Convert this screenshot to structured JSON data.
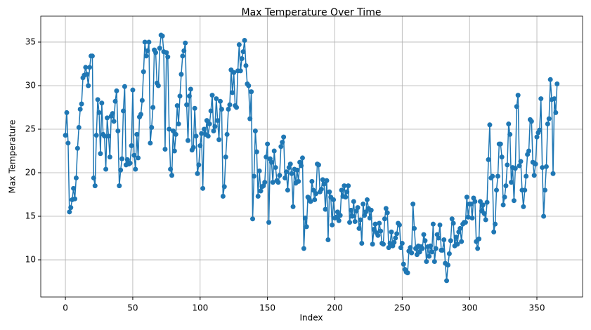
{
  "chart_data": {
    "type": "line",
    "title": "Max Temperature Over Time",
    "x_label": "Index",
    "y_label": "Max Temperature",
    "color": "#1f77b4",
    "grid": true,
    "markers": true,
    "xlim": [
      -18.3,
      383.9
    ],
    "ylim": [
      5.73,
      37.98
    ],
    "xticks": [
      0,
      50,
      100,
      150,
      200,
      250,
      300,
      350
    ],
    "yticks": [
      10,
      15,
      20,
      25,
      30,
      35
    ],
    "x": [
      0,
      1,
      2,
      3,
      4,
      5,
      6,
      7,
      8,
      9,
      10,
      11,
      12,
      13,
      14,
      15,
      16,
      17,
      18,
      19,
      20,
      21,
      22,
      23,
      24,
      25,
      26,
      27,
      28,
      29,
      30,
      31,
      32,
      33,
      34,
      35,
      36,
      37,
      38,
      39,
      40,
      41,
      42,
      43,
      44,
      45,
      46,
      47,
      48,
      49,
      50,
      51,
      52,
      53,
      54,
      55,
      56,
      57,
      58,
      59,
      60,
      61,
      62,
      63,
      64,
      65,
      66,
      67,
      68,
      69,
      70,
      71,
      72,
      73,
      74,
      75,
      76,
      77,
      78,
      79,
      80,
      81,
      82,
      83,
      84,
      85,
      86,
      87,
      88,
      89,
      90,
      91,
      92,
      93,
      94,
      95,
      96,
      97,
      98,
      99,
      100,
      101,
      102,
      103,
      104,
      105,
      106,
      107,
      108,
      109,
      110,
      111,
      112,
      113,
      114,
      115,
      116,
      117,
      118,
      119,
      120,
      121,
      122,
      123,
      124,
      125,
      126,
      127,
      128,
      129,
      130,
      131,
      132,
      133,
      134,
      135,
      136,
      137,
      138,
      139,
      140,
      141,
      142,
      143,
      144,
      145,
      146,
      147,
      148,
      149,
      150,
      151,
      152,
      153,
      154,
      155,
      156,
      157,
      158,
      159,
      160,
      161,
      162,
      163,
      164,
      165,
      166,
      167,
      168,
      169,
      170,
      171,
      172,
      173,
      174,
      175,
      176,
      177,
      178,
      179,
      180,
      181,
      182,
      183,
      184,
      185,
      186,
      187,
      188,
      189,
      190,
      191,
      192,
      193,
      194,
      195,
      196,
      197,
      198,
      199,
      200,
      201,
      202,
      203,
      204,
      205,
      206,
      207,
      208,
      209,
      210,
      211,
      212,
      213,
      214,
      215,
      216,
      217,
      218,
      219,
      220,
      221,
      222,
      223,
      224,
      225,
      226,
      227,
      228,
      229,
      230,
      231,
      232,
      233,
      234,
      235,
      236,
      237,
      238,
      239,
      240,
      241,
      242,
      243,
      244,
      245,
      246,
      247,
      248,
      249,
      250,
      251,
      252,
      253,
      254,
      255,
      256,
      257,
      258,
      259,
      260,
      261,
      262,
      263,
      264,
      265,
      266,
      267,
      268,
      269,
      270,
      271,
      272,
      273,
      274,
      275,
      276,
      277,
      278,
      279,
      280,
      281,
      282,
      283,
      284,
      285,
      286,
      287,
      288,
      289,
      290,
      291,
      292,
      293,
      294,
      295,
      296,
      297,
      298,
      299,
      300,
      301,
      302,
      303,
      304,
      305,
      306,
      307,
      308,
      309,
      310,
      311,
      312,
      313,
      314,
      315,
      316,
      317,
      318,
      319,
      320,
      321,
      322,
      323,
      324,
      325,
      326,
      327,
      328,
      329,
      330,
      331,
      332,
      333,
      334,
      335,
      336,
      337,
      338,
      339,
      340,
      341,
      342,
      343,
      344,
      345,
      346,
      347,
      348,
      349,
      350,
      351,
      352,
      353,
      354,
      355,
      356,
      357,
      358,
      359,
      360,
      361,
      362,
      363,
      364,
      365
    ],
    "values": [
      24.3,
      26.9,
      23.4,
      15.5,
      16.0,
      16.9,
      18.2,
      17.0,
      19.4,
      22.8,
      25.2,
      27.3,
      27.9,
      30.9,
      31.2,
      32.1,
      31.3,
      30.0,
      32.1,
      33.4,
      33.4,
      19.4,
      18.5,
      24.3,
      28.4,
      26.9,
      22.2,
      28.0,
      24.4,
      24.2,
      20.4,
      26.3,
      24.2,
      21.8,
      26.5,
      26.8,
      25.9,
      28.2,
      29.4,
      24.8,
      18.5,
      20.3,
      21.6,
      27.1,
      29.9,
      20.9,
      21.5,
      21.0,
      21.1,
      23.1,
      29.5,
      22.0,
      20.4,
      24.4,
      21.7,
      26.4,
      26.7,
      28.3,
      31.6,
      35.0,
      33.4,
      34.0,
      35.0,
      23.4,
      25.2,
      27.5,
      34.1,
      33.8,
      30.3,
      30.0,
      34.3,
      35.8,
      35.7,
      33.9,
      22.7,
      33.8,
      33.3,
      25.0,
      20.4,
      19.7,
      24.8,
      22.5,
      24.4,
      27.7,
      25.6,
      28.8,
      31.3,
      33.4,
      34.0,
      34.9,
      27.8,
      23.7,
      28.8,
      29.6,
      22.6,
      22.9,
      27.4,
      24.2,
      19.9,
      20.9,
      23.1,
      24.5,
      18.2,
      25.0,
      24.4,
      26.0,
      24.2,
      25.6,
      27.1,
      28.9,
      24.8,
      25.3,
      28.5,
      26.0,
      23.8,
      28.2,
      27.3,
      17.3,
      18.4,
      21.8,
      24.4,
      27.3,
      27.8,
      31.8,
      29.2,
      31.5,
      27.7,
      27.5,
      31.7,
      34.7,
      31.7,
      33.1,
      33.9,
      35.2,
      32.3,
      30.2,
      30.0,
      26.2,
      29.3,
      14.7,
      19.6,
      24.8,
      22.4,
      17.3,
      20.2,
      17.9,
      18.4,
      18.5,
      18.9,
      21.8,
      23.3,
      14.3,
      21.6,
      21.2,
      18.9,
      22.5,
      20.6,
      19.1,
      18.9,
      19.7,
      23.0,
      23.5,
      24.1,
      19.4,
      20.1,
      18.0,
      20.6,
      21.0,
      19.9,
      16.1,
      20.4,
      18.8,
      20.3,
      19.0,
      21.2,
      20.8,
      21.7,
      11.3,
      14.8,
      13.8,
      17.2,
      17.0,
      16.7,
      19.0,
      18.0,
      16.9,
      17.6,
      21.0,
      20.9,
      17.8,
      18.1,
      19.2,
      18.7,
      15.8,
      19.1,
      12.3,
      17.8,
      17.2,
      14.0,
      16.9,
      14.8,
      14.9,
      15.5,
      14.5,
      15.1,
      18.0,
      17.3,
      18.5,
      17.2,
      17.8,
      18.5,
      14.3,
      15.7,
      15.0,
      16.7,
      14.4,
      15.6,
      16.0,
      13.6,
      14.6,
      11.9,
      16.4,
      15.1,
      15.5,
      16.9,
      15.9,
      14.8,
      15.7,
      11.8,
      13.5,
      14.1,
      13.1,
      12.8,
      14.2,
      13.3,
      11.9,
      11.8,
      14.7,
      15.9,
      15.4,
      11.4,
      11.9,
      13.2,
      11.6,
      12.0,
      12.5,
      13.0,
      14.2,
      14.0,
      11.4,
      11.9,
      9.5,
      8.9,
      8.6,
      8.5,
      11.0,
      11.4,
      10.8,
      16.4,
      13.6,
      11.3,
      10.6,
      11.6,
      10.9,
      11.5,
      11.3,
      12.9,
      12.2,
      9.8,
      11.5,
      10.4,
      11.6,
      10.9,
      14.1,
      9.8,
      11.3,
      12.9,
      12.5,
      14.0,
      11.1,
      11.1,
      12.3,
      9.6,
      7.6,
      9.4,
      10.7,
      12.2,
      14.7,
      14.2,
      11.6,
      12.6,
      11.8,
      13.2,
      13.6,
      12.1,
      14.1,
      14.3,
      14.3,
      17.2,
      14.9,
      16.4,
      16.4,
      14.8,
      17.1,
      16.7,
      12.1,
      11.3,
      12.4,
      16.7,
      15.6,
      16.3,
      15.3,
      14.6,
      16.6,
      21.5,
      25.5,
      19.4,
      19.6,
      13.2,
      14.1,
      18.0,
      19.6,
      23.3,
      23.3,
      21.8,
      16.3,
      17.2,
      18.5,
      20.9,
      25.6,
      24.4,
      18.9,
      20.6,
      16.8,
      20.5,
      27.6,
      28.9,
      20.8,
      21.3,
      18.0,
      16.1,
      18.0,
      19.6,
      22.1,
      22.5,
      26.1,
      25.9,
      21.2,
      19.7,
      21.0,
      24.1,
      24.6,
      24.9,
      28.5,
      20.6,
      15.0,
      18.0,
      20.7,
      25.6,
      26.2,
      30.7,
      28.4,
      19.9,
      28.5,
      26.9,
      30.2
    ]
  }
}
